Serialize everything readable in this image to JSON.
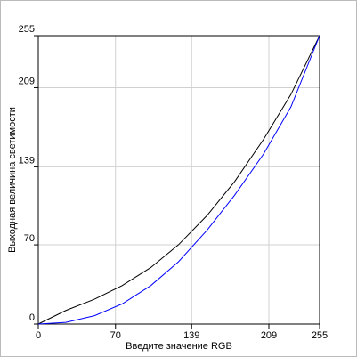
{
  "chart_data": {
    "type": "line",
    "x_label": "Введите значение RGB",
    "y_label": "Выходная величина светимости",
    "x": [
      0,
      25,
      51,
      76,
      102,
      127,
      153,
      178,
      204,
      229,
      255
    ],
    "series": [
      {
        "color": "#000000",
        "values": [
          0,
          12,
          22,
          34,
          50,
          70,
          96,
          126,
          163,
          203,
          255
        ]
      },
      {
        "color": "#0000ff",
        "values": [
          0,
          1.5,
          7.4,
          17.8,
          34,
          55,
          83,
          114,
          150,
          192,
          255
        ]
      }
    ],
    "xlim": [
      0,
      255
    ],
    "ylim": [
      0,
      255
    ],
    "xticks": [
      0,
      70,
      139,
      209,
      255
    ],
    "yticks": [
      0,
      70,
      139,
      209,
      255
    ],
    "grid": true
  }
}
